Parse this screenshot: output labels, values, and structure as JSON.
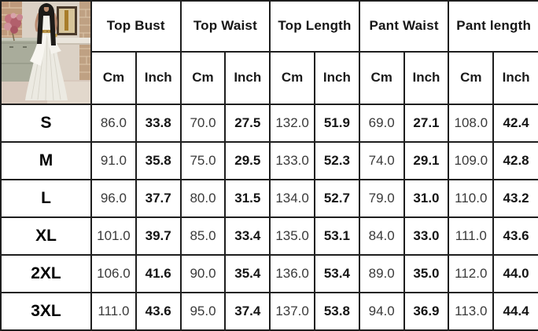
{
  "photo": {
    "description": "Model with long dark hair wearing a white halter-neck top with gold belt and white pleated wide-leg pants, standing in front of a brick wall, green-gray cabinet, pink flower bouquet and framed picture",
    "palette": {
      "wall": "#dbd1c5",
      "brick": "#c09a7c",
      "cabinet": "#a9ac9b",
      "flowers": "#c4737f",
      "outfit": "#eceae2",
      "belt": "#b8944a",
      "hair": "#1d1b18"
    }
  },
  "table": {
    "border_color": "#1e1e1e",
    "column_groups": [
      {
        "label": "Top Bust"
      },
      {
        "label": "Top Waist"
      },
      {
        "label": "Top Length"
      },
      {
        "label": "Pant Waist"
      },
      {
        "label": "Pant length"
      }
    ],
    "unit_headers": [
      "Cm",
      "Inch"
    ],
    "rows": [
      {
        "size": "S",
        "values": [
          "86.0",
          "33.8",
          "70.0",
          "27.5",
          "132.0",
          "51.9",
          "69.0",
          "27.1",
          "108.0",
          "42.4"
        ]
      },
      {
        "size": "M",
        "values": [
          "91.0",
          "35.8",
          "75.0",
          "29.5",
          "133.0",
          "52.3",
          "74.0",
          "29.1",
          "109.0",
          "42.8"
        ]
      },
      {
        "size": "L",
        "values": [
          "96.0",
          "37.7",
          "80.0",
          "31.5",
          "134.0",
          "52.7",
          "79.0",
          "31.0",
          "110.0",
          "43.2"
        ]
      },
      {
        "size": "XL",
        "values": [
          "101.0",
          "39.7",
          "85.0",
          "33.4",
          "135.0",
          "53.1",
          "84.0",
          "33.0",
          "111.0",
          "43.6"
        ]
      },
      {
        "size": "2XL",
        "values": [
          "106.0",
          "41.6",
          "90.0",
          "35.4",
          "136.0",
          "53.4",
          "89.0",
          "35.0",
          "112.0",
          "44.0"
        ]
      },
      {
        "size": "3XL",
        "values": [
          "111.0",
          "43.6",
          "95.0",
          "37.4",
          "137.0",
          "53.8",
          "94.0",
          "36.9",
          "113.0",
          "44.4"
        ]
      }
    ]
  }
}
